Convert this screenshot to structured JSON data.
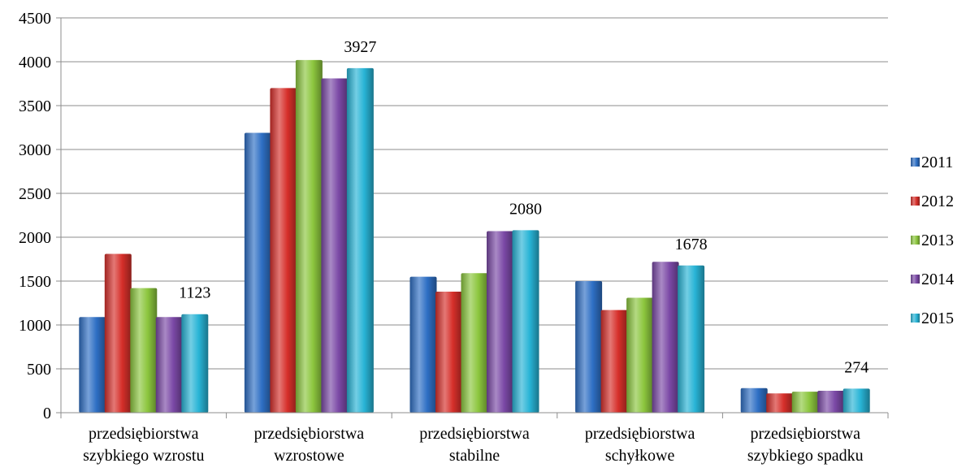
{
  "chart_data": {
    "type": "bar",
    "categories": [
      [
        "przedsiębiorstwa",
        "szybkiego wzrostu"
      ],
      [
        "przedsiębiorstwa",
        "wzrostowe"
      ],
      [
        "przedsiębiorstwa",
        "stabilne"
      ],
      [
        "przedsiębiorstwa",
        "schyłkowe"
      ],
      [
        "przedsiębiorstwa",
        "szybkiego spadku"
      ]
    ],
    "series": [
      {
        "name": "2011",
        "color": "#2E6FC4",
        "values": [
          1090,
          3190,
          1550,
          1500,
          280
        ]
      },
      {
        "name": "2012",
        "color": "#D62F2A",
        "values": [
          1810,
          3700,
          1380,
          1170,
          220
        ]
      },
      {
        "name": "2013",
        "color": "#8CC63E",
        "values": [
          1420,
          4020,
          1590,
          1310,
          240
        ]
      },
      {
        "name": "2014",
        "color": "#7B49A6",
        "values": [
          1090,
          3810,
          2070,
          1720,
          250
        ]
      },
      {
        "name": "2015",
        "color": "#28B4D6",
        "values": [
          1123,
          3927,
          2080,
          1678,
          274
        ]
      }
    ],
    "data_labels": [
      {
        "category": 0,
        "series": 4,
        "text": "1123"
      },
      {
        "category": 1,
        "series": 4,
        "text": "3927"
      },
      {
        "category": 2,
        "series": 4,
        "text": "2080"
      },
      {
        "category": 3,
        "series": 4,
        "text": "1678"
      },
      {
        "category": 4,
        "series": 4,
        "text": "274"
      }
    ],
    "yticks": [
      "0",
      "500",
      "1000",
      "1500",
      "2000",
      "2500",
      "3000",
      "3500",
      "4000",
      "4500"
    ],
    "ylim": [
      0,
      4500
    ],
    "title": "",
    "xlabel": "",
    "ylabel": "",
    "grid": true,
    "legend_position": "right"
  }
}
